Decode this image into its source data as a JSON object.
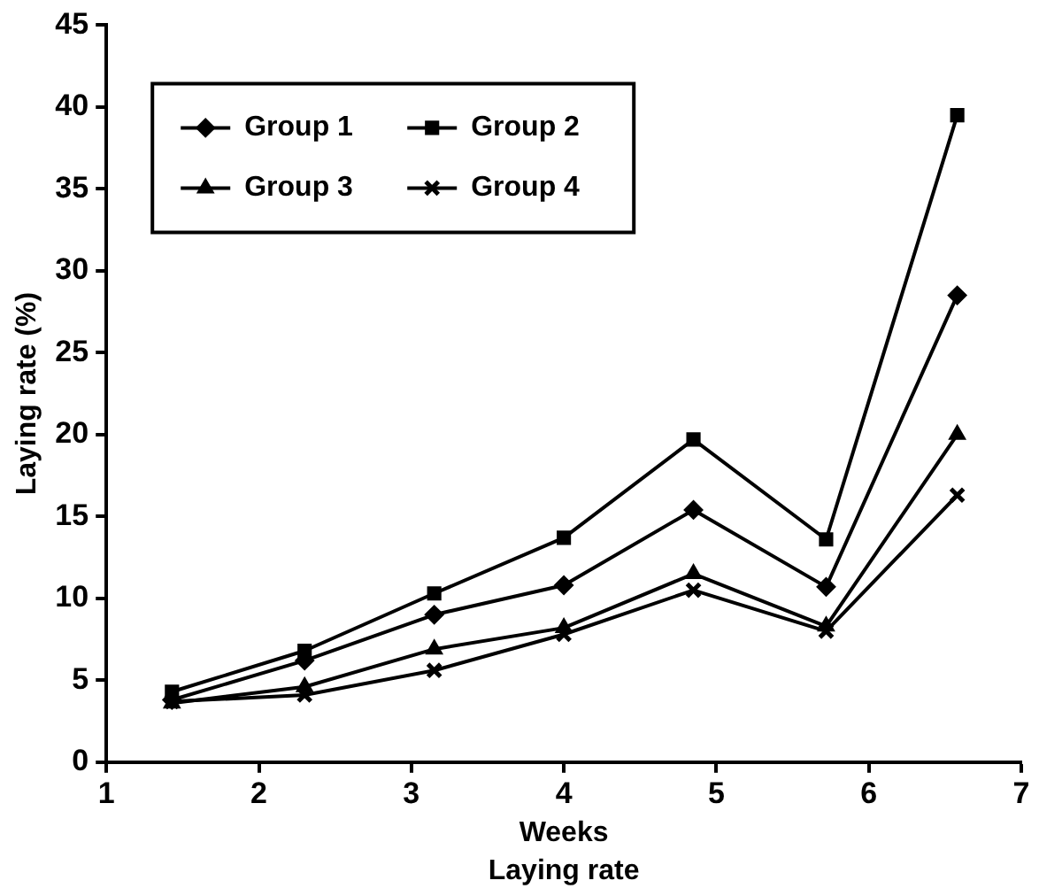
{
  "chart_data": {
    "type": "line",
    "xlabel": "Weeks",
    "ylabel": "Laying rate (%)",
    "annotations": [
      "Laying rate"
    ],
    "x": [
      1.43,
      2.3,
      3.15,
      4.0,
      4.85,
      5.72,
      6.58
    ],
    "xlim": [
      1,
      7
    ],
    "xticks": [
      1,
      2,
      3,
      4,
      5,
      6,
      7
    ],
    "ylim": [
      0,
      45
    ],
    "yticks": [
      0,
      5,
      10,
      15,
      20,
      25,
      30,
      35,
      40,
      45
    ],
    "grid": false,
    "legend": "top left",
    "line_style": "solid",
    "series": [
      {
        "name": "Group 1",
        "color": "#000000",
        "marker": "diamond",
        "values": [
          3.8,
          6.2,
          9.0,
          10.8,
          15.4,
          10.7,
          28.5
        ]
      },
      {
        "name": "Group 2",
        "color": "#000000",
        "marker": "square",
        "values": [
          4.3,
          6.8,
          10.3,
          13.7,
          19.7,
          13.6,
          39.5
        ]
      },
      {
        "name": "Group 3",
        "color": "#000000",
        "marker": "triangle",
        "values": [
          3.6,
          4.6,
          6.9,
          8.2,
          11.5,
          8.3,
          20.0
        ]
      },
      {
        "name": "Group 4",
        "color": "#000000",
        "marker": "cross",
        "values": [
          3.7,
          4.1,
          5.6,
          7.8,
          10.5,
          8.0,
          16.3
        ]
      }
    ]
  }
}
